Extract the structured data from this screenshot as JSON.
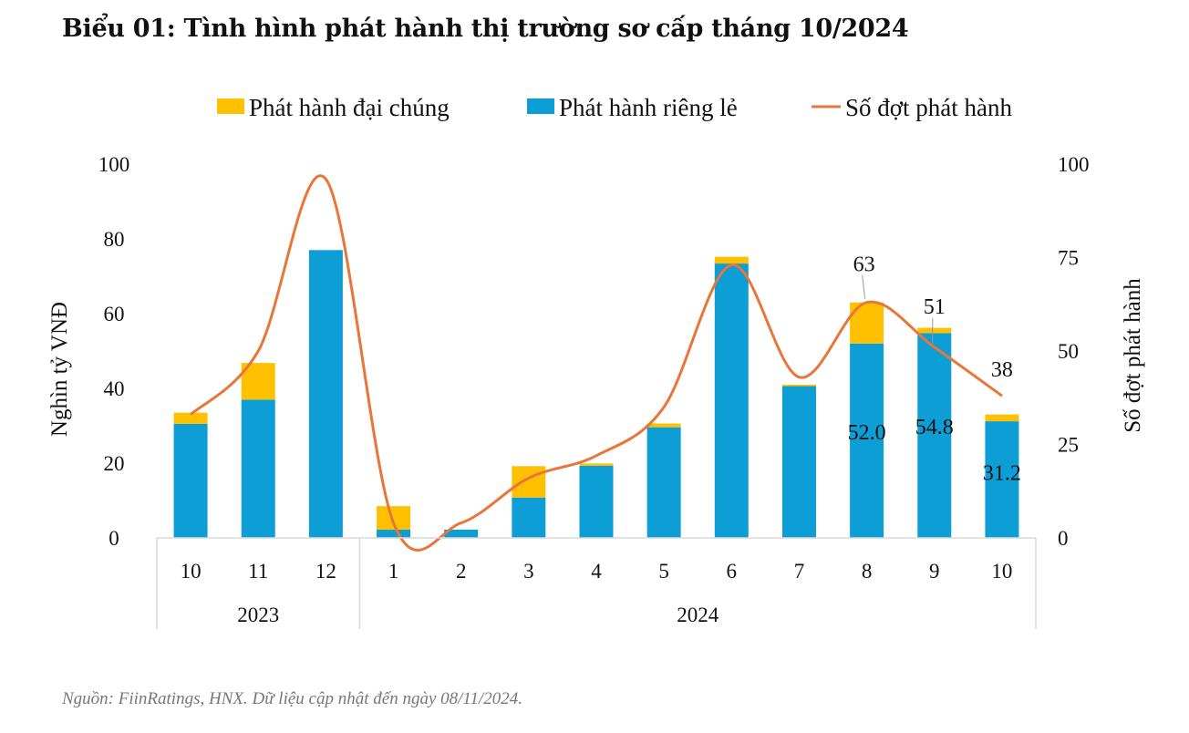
{
  "title": "Biểu 01: Tình hình phát hành thị trường sơ cấp tháng 10/2024",
  "source": "Nguồn: FiinRatings, HNX. Dữ liệu cập nhật đến ngày 08/11/2024.",
  "colors": {
    "public": "#FFC000",
    "private": "#0E9ED6",
    "line": "#E8763A"
  },
  "chart_data": {
    "type": "bar",
    "stacked": true,
    "title": "Biểu 01: Tình hình phát hành thị trường sơ cấp tháng 10/2024",
    "categories": [
      "10",
      "11",
      "12",
      "1",
      "2",
      "3",
      "4",
      "5",
      "6",
      "7",
      "8",
      "9",
      "10"
    ],
    "groups": [
      {
        "label": "2023",
        "count": 3
      },
      {
        "label": "2024",
        "count": 10
      }
    ],
    "series": [
      {
        "name": "Phát hành riêng lẻ",
        "type": "bar",
        "axis": "left",
        "values": [
          30.5,
          37.0,
          77.0,
          2.2,
          2.2,
          10.8,
          19.3,
          29.6,
          73.4,
          40.6,
          52.0,
          54.8,
          31.2
        ]
      },
      {
        "name": "Phát hành đại chúng",
        "type": "bar",
        "axis": "left",
        "values": [
          3.0,
          9.8,
          0.0,
          6.3,
          0.0,
          8.4,
          0.6,
          1.0,
          1.8,
          0.4,
          11.0,
          1.4,
          1.8
        ]
      },
      {
        "name": "Số đợt phát hành",
        "type": "line",
        "axis": "right",
        "values": [
          33,
          50,
          96,
          4,
          4,
          16,
          22,
          35,
          73,
          43,
          63,
          51,
          38
        ]
      }
    ],
    "data_labels": {
      "bars": [
        {
          "index": 10,
          "text": "52.0"
        },
        {
          "index": 11,
          "text": "54.8"
        },
        {
          "index": 12,
          "text": "31.2"
        }
      ],
      "line": [
        {
          "index": 10,
          "text": "63"
        },
        {
          "index": 11,
          "text": "51"
        },
        {
          "index": 12,
          "text": "38"
        }
      ]
    },
    "ylabel": "Nghìn tỷ VNĐ",
    "ylim": [
      0,
      100
    ],
    "yticks": [
      "0",
      "20",
      "40",
      "60",
      "80",
      "100"
    ],
    "y2label": "Số đợt phát hành",
    "y2lim": [
      0,
      100
    ],
    "y2ticks": [
      "0",
      "25",
      "50",
      "75",
      "100"
    ],
    "legend": [
      "Phát hành đại chúng",
      "Phát hành riêng lẻ",
      "Số đợt phát hành"
    ],
    "legend_position": "top",
    "grid": false
  }
}
